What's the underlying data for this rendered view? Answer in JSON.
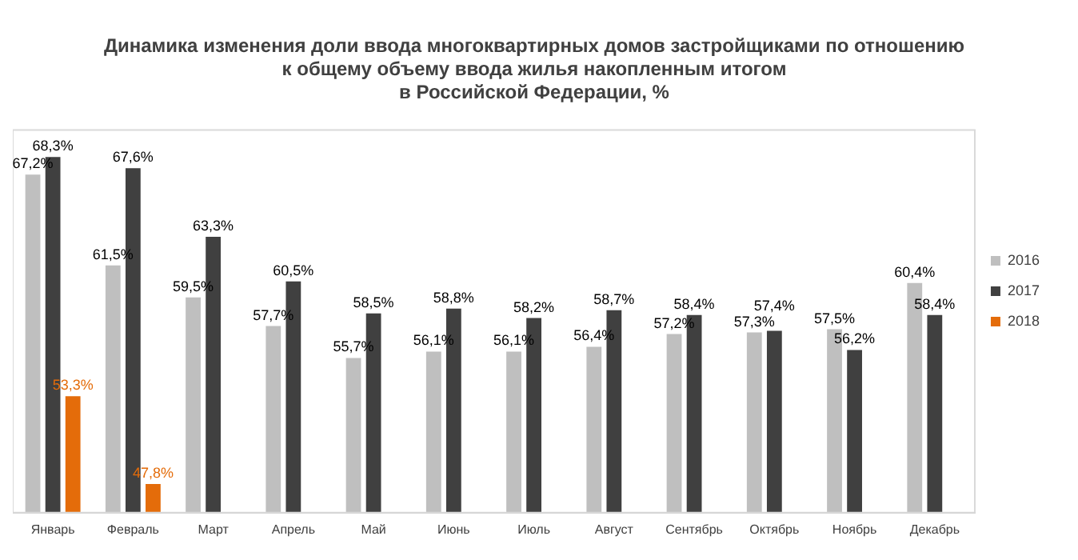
{
  "chart_data": {
    "type": "bar",
    "title": "Динамика изменения доли ввода многоквартирных домов застройщиками по отношению\nк общему объему ввода жилья накопленным итогом\nв Российской Федерации, %",
    "categories": [
      "Январь",
      "Февраль",
      "Март",
      "Апрель",
      "Май",
      "Июнь",
      "Июль",
      "Август",
      "Сентябрь",
      "Октябрь",
      "Ноябрь",
      "Декабрь"
    ],
    "series": [
      {
        "name": "2016",
        "color": "#bfbfbf",
        "values": [
          67.2,
          61.5,
          59.5,
          57.7,
          55.7,
          56.1,
          56.1,
          56.4,
          57.2,
          57.3,
          57.5,
          60.4
        ],
        "value_labels": [
          "67,2%",
          "61,5%",
          "59,5%",
          "57,7%",
          "55,7%",
          "56,1%",
          "56,1%",
          "56,4%",
          "57,2%",
          "57,3%",
          "57,5%",
          "60,4%"
        ]
      },
      {
        "name": "2017",
        "color": "#404040",
        "values": [
          68.3,
          67.6,
          63.3,
          60.5,
          58.5,
          58.8,
          58.2,
          58.7,
          58.4,
          57.4,
          56.2,
          58.4
        ],
        "value_labels": [
          "68,3%",
          "67,6%",
          "63,3%",
          "60,5%",
          "58,5%",
          "58,8%",
          "58,2%",
          "58,7%",
          "58,4%",
          "57,4%",
          "56,2%",
          "58,4%"
        ]
      },
      {
        "name": "2018",
        "color": "#e46c0a",
        "values": [
          53.3,
          47.8,
          null,
          null,
          null,
          null,
          null,
          null,
          null,
          null,
          null,
          null
        ],
        "value_labels": [
          "53,3%",
          "47,8%",
          null,
          null,
          null,
          null,
          null,
          null,
          null,
          null,
          null,
          null
        ]
      }
    ],
    "ylim": [
      46,
      70
    ],
    "grid": false,
    "legend": "right"
  }
}
